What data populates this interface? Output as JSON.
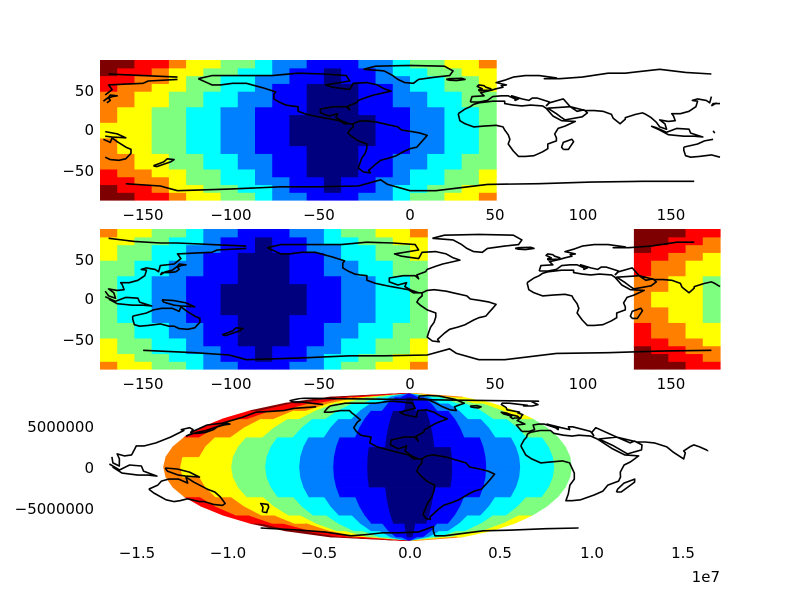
{
  "colors": {
    "jet": [
      "#00007f",
      "#0000ff",
      "#007fff",
      "#00ffff",
      "#7fff7f",
      "#ffff00",
      "#ff7f00",
      "#ff0000",
      "#7f0000"
    ],
    "coastline": "#000000",
    "background": "#ffffff"
  },
  "chart_data": [
    {
      "type": "heatmap",
      "projection": "PlateCarree",
      "central_longitude": -45,
      "xticks": [
        -150,
        -100,
        -50,
        0,
        50,
        100,
        150
      ],
      "yticks": [
        -50,
        0,
        50
      ],
      "xtick_labels": [
        "−150",
        "−100",
        "−50",
        "0",
        "50",
        "100",
        "150"
      ],
      "ytick_labels": [
        "−50",
        "0",
        "50"
      ],
      "xlim": [
        -180,
        180
      ],
      "ylim": [
        -90,
        90
      ],
      "grid": false,
      "masked_longitudes": [
        50,
        180
      ]
    },
    {
      "type": "heatmap",
      "projection": "PlateCarree",
      "central_longitude": -85,
      "xticks": [
        -150,
        -100,
        -50,
        0,
        50,
        100,
        150
      ],
      "yticks": [
        -50,
        0,
        50
      ],
      "xtick_labels": [
        "−150",
        "−100",
        "−50",
        "0",
        "50",
        "100",
        "150"
      ],
      "ytick_labels": [
        "−50",
        "0",
        "50"
      ],
      "xlim": [
        -180,
        180
      ],
      "ylim": [
        -90,
        90
      ],
      "grid": false,
      "masked_longitudes": [
        10,
        130
      ]
    },
    {
      "type": "heatmap",
      "projection": "Mollweide",
      "central_longitude": -85,
      "xticks": [
        -1.5,
        -1.0,
        -0.5,
        0.0,
        0.5,
        1.0,
        1.5
      ],
      "yticks": [
        -5000000,
        0,
        5000000
      ],
      "xtick_labels": [
        "−1.5",
        "−1.0",
        "−0.5",
        "0.0",
        "0.5",
        "1.0",
        "1.5"
      ],
      "ytick_labels": [
        "−5000000",
        "0",
        "5000000"
      ],
      "x_offset_label": "1e7",
      "xlim": [
        -1.8,
        1.8
      ],
      "ylim": [
        -9000000,
        9000000
      ],
      "grid": false,
      "masked_longitudes": [
        10,
        130
      ]
    }
  ]
}
